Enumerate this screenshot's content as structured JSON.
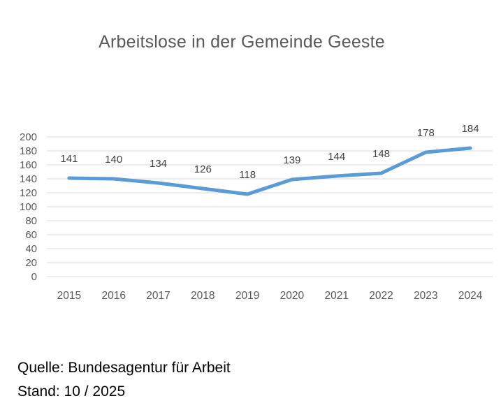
{
  "chart_data": {
    "type": "line",
    "title": "Arbeitslose in der Gemeinde Geeste",
    "categories": [
      "2015",
      "2016",
      "2017",
      "2018",
      "2019",
      "2020",
      "2021",
      "2022",
      "2023",
      "2024"
    ],
    "values": [
      141,
      140,
      134,
      126,
      118,
      139,
      144,
      148,
      178,
      184
    ],
    "data_labels": [
      "141",
      "140",
      "134",
      "126",
      "118",
      "139",
      "144",
      "148",
      "178",
      "184"
    ],
    "xlabel": "",
    "ylabel": "",
    "ylim": [
      0,
      200
    ],
    "yticks": [
      0,
      20,
      40,
      60,
      80,
      100,
      120,
      140,
      160,
      180,
      200
    ],
    "grid": true,
    "legend": "none",
    "line_color": "#5B9BD5",
    "gridline_color": "#D9D9D9",
    "axis_label_color": "#595959",
    "data_label_color": "#404040",
    "title_color": "#595959"
  },
  "footer": {
    "source_line1": "Quelle: Bundesagentur für Arbeit",
    "source_line2": "Stand: 10 / 2025"
  }
}
